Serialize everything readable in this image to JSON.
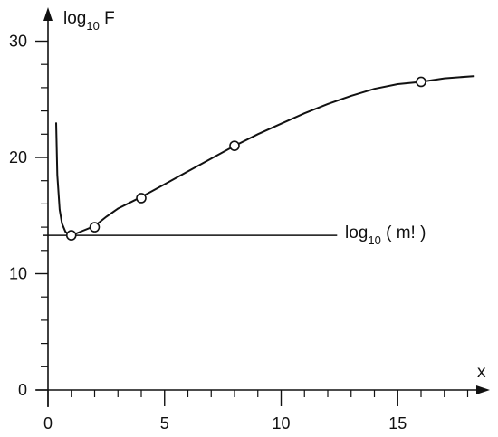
{
  "chart_data": {
    "type": "line",
    "xlabel": "x",
    "ylabel": {
      "main": "log",
      "sub": "10",
      "suffix": " F"
    },
    "xlim": [
      0,
      18.5
    ],
    "ylim": [
      0,
      30
    ],
    "x_ticks": [
      0,
      5,
      10,
      15
    ],
    "y_ticks": [
      0,
      10,
      20,
      30
    ],
    "x_minor_step": 1,
    "y_minor_step": 2,
    "grid": false,
    "curve": {
      "x": [
        0.35,
        0.4,
        0.5,
        0.6,
        0.75,
        0.9,
        1.0,
        1.2,
        1.5,
        2.0,
        2.5,
        3.0,
        4.0,
        5.0,
        6.0,
        7.0,
        8.0,
        9.0,
        10.0,
        11.0,
        12.0,
        13.0,
        14.0,
        15.0,
        16.0,
        17.0,
        18.3
      ],
      "y": [
        23.0,
        18.5,
        15.5,
        14.3,
        13.6,
        13.35,
        13.3,
        13.45,
        13.7,
        14.1,
        14.9,
        15.6,
        16.6,
        17.7,
        18.8,
        19.9,
        21.0,
        22.0,
        22.9,
        23.8,
        24.6,
        25.3,
        25.9,
        26.3,
        26.5,
        26.8,
        27.0
      ]
    },
    "points": {
      "x": [
        1,
        2,
        4,
        8,
        16
      ],
      "y": [
        13.3,
        14.0,
        16.5,
        21.0,
        26.5
      ]
    },
    "reference_line": {
      "y": 13.3,
      "x_range": [
        -0.2,
        12.4
      ],
      "label": {
        "main": "log",
        "sub": "10",
        "suffix": " ( m! )"
      }
    }
  }
}
